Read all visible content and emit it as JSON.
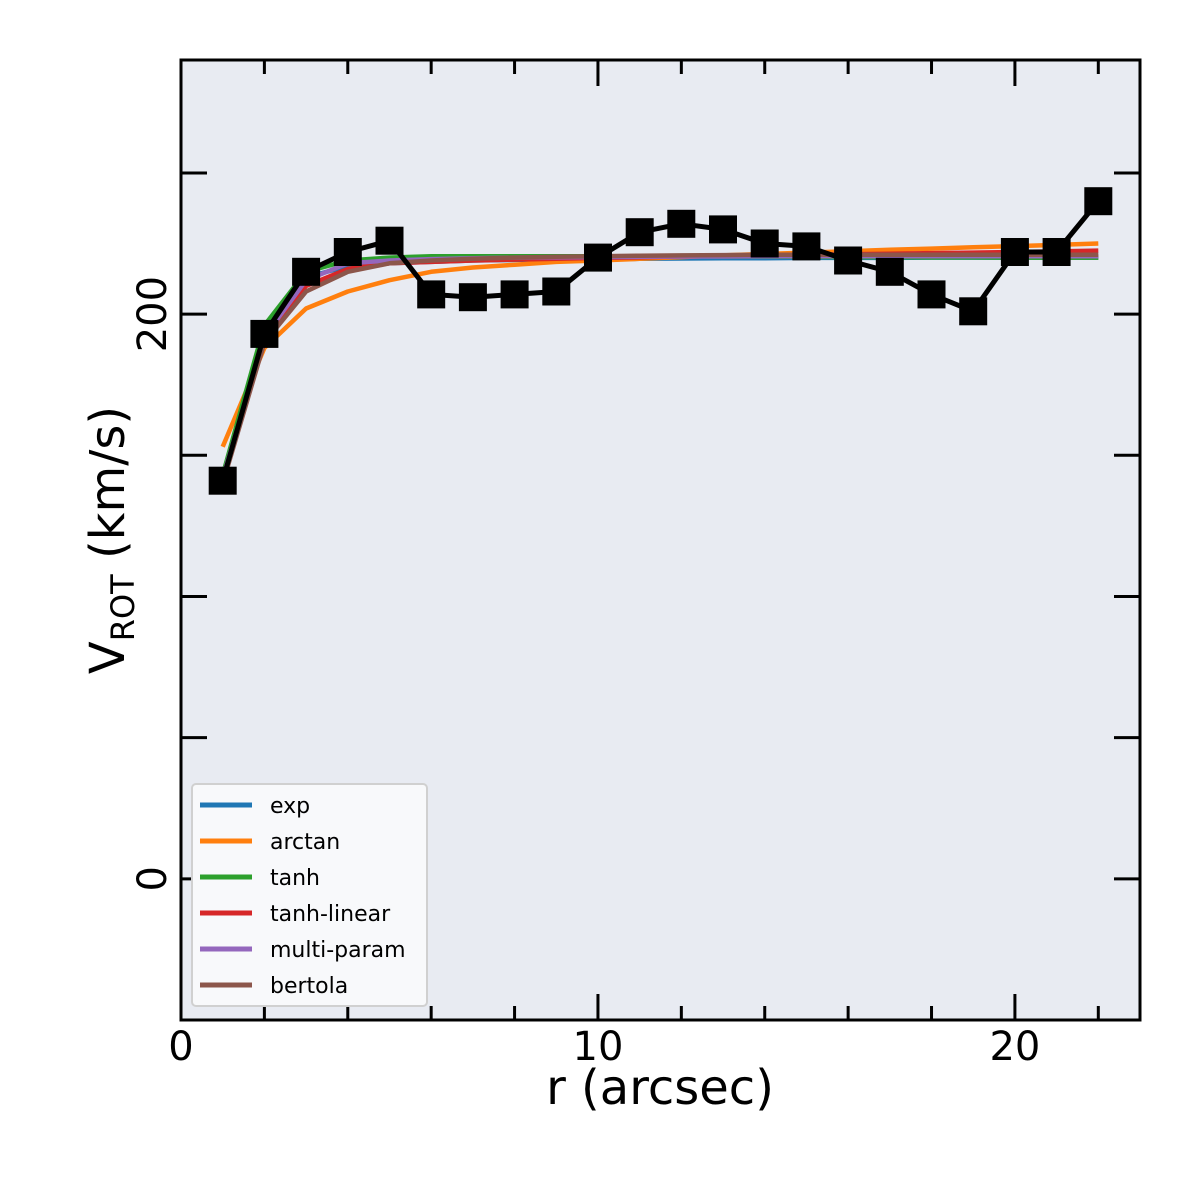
{
  "chart_data": {
    "type": "line",
    "xlabel": "r (arcsec)",
    "ylabel_main": "V",
    "ylabel_sub": "ROT",
    "ylabel_units": " (km/s)",
    "xlim": [
      0,
      23
    ],
    "ylim": [
      -50,
      290
    ],
    "x_major_ticks": [
      0,
      10,
      20
    ],
    "x_minor_ticks": [
      2,
      4,
      6,
      8,
      12,
      14,
      16,
      18,
      22
    ],
    "y_labeled_ticks": [
      0,
      200
    ],
    "y_other_ticks": [
      50,
      100,
      150,
      250
    ],
    "grid": false,
    "legend_position": "lower-left",
    "observed": {
      "marker": "square",
      "color": "#000000",
      "x": [
        1,
        2,
        3,
        4,
        5,
        6,
        7,
        8,
        9,
        10,
        11,
        12,
        13,
        14,
        15,
        16,
        17,
        18,
        19,
        20,
        21,
        22
      ],
      "y": [
        141,
        193,
        215,
        222,
        226,
        207,
        206,
        207,
        208,
        220,
        229,
        232,
        230,
        225,
        224,
        219,
        215,
        207,
        201,
        222,
        222,
        240
      ]
    },
    "series": [
      {
        "name": "exp",
        "color": "#1f77b4",
        "x": [
          1,
          2,
          3,
          4,
          5,
          6,
          7,
          8,
          9,
          10,
          11,
          12,
          13,
          14,
          15,
          16,
          17,
          18,
          19,
          20,
          21,
          22
        ],
        "y": [
          143,
          193,
          213,
          217,
          218,
          218.5,
          219,
          219.2,
          219.4,
          219.5,
          219.6,
          219.7,
          219.8,
          219.8,
          219.9,
          219.9,
          219.9,
          220,
          220,
          220,
          220,
          220
        ]
      },
      {
        "name": "arctan",
        "color": "#ff7f0e",
        "x": [
          1,
          2,
          3,
          4,
          5,
          6,
          7,
          8,
          9,
          10,
          11,
          12,
          13,
          14,
          15,
          16,
          17,
          18,
          19,
          20,
          21,
          22
        ],
        "y": [
          153,
          188,
          202,
          208,
          212,
          215,
          216.5,
          217.5,
          218.5,
          219,
          219.6,
          220.2,
          220.8,
          221.3,
          221.8,
          222.3,
          222.8,
          223.2,
          223.7,
          224.1,
          224.5,
          225
        ]
      },
      {
        "name": "tanh",
        "color": "#2ca02c",
        "x": [
          1,
          2,
          3,
          4,
          5,
          6,
          7,
          8,
          9,
          10,
          11,
          12,
          13,
          14,
          15,
          16,
          17,
          18,
          19,
          20,
          21,
          22
        ],
        "y": [
          143,
          196,
          215,
          219,
          220,
          220.5,
          220.5,
          220.5,
          220.5,
          220.5,
          220.5,
          220.5,
          220.4,
          220.4,
          220.3,
          220.2,
          220.2,
          220.1,
          220.1,
          220,
          220,
          220
        ]
      },
      {
        "name": "tanh-linear",
        "color": "#d62728",
        "x": [
          1,
          2,
          3,
          4,
          5,
          6,
          7,
          8,
          9,
          10,
          11,
          12,
          13,
          14,
          15,
          16,
          17,
          18,
          19,
          20,
          21,
          22
        ],
        "y": [
          142,
          190,
          210,
          216,
          218,
          218.5,
          219,
          219.3,
          219.6,
          219.9,
          220.1,
          220.4,
          220.6,
          220.8,
          221,
          221.2,
          221.4,
          221.6,
          221.8,
          222,
          222.2,
          222.5
        ]
      },
      {
        "name": "multi-param",
        "color": "#9467bd",
        "x": [
          1,
          2,
          3,
          4,
          5,
          6,
          7,
          8,
          9,
          10,
          11,
          12,
          13,
          14,
          15,
          16,
          17,
          18,
          19,
          20,
          21,
          22
        ],
        "y": [
          142,
          192,
          212,
          218,
          219,
          219.5,
          219.8,
          220,
          220.1,
          220.2,
          220.3,
          220.4,
          220.4,
          220.5,
          220.5,
          220.5,
          220.5,
          220.5,
          220.5,
          220.5,
          220.5,
          220.5
        ]
      },
      {
        "name": "bertola",
        "color": "#8c564b",
        "x": [
          1,
          2,
          3,
          4,
          5,
          6,
          7,
          8,
          9,
          10,
          11,
          12,
          13,
          14,
          15,
          16,
          17,
          18,
          19,
          20,
          21,
          22
        ],
        "y": [
          140,
          190,
          208,
          215,
          218,
          219,
          219.6,
          220,
          220.3,
          220.5,
          220.7,
          220.8,
          220.9,
          221,
          221,
          221,
          221,
          221,
          221,
          221,
          221,
          221
        ]
      }
    ]
  }
}
